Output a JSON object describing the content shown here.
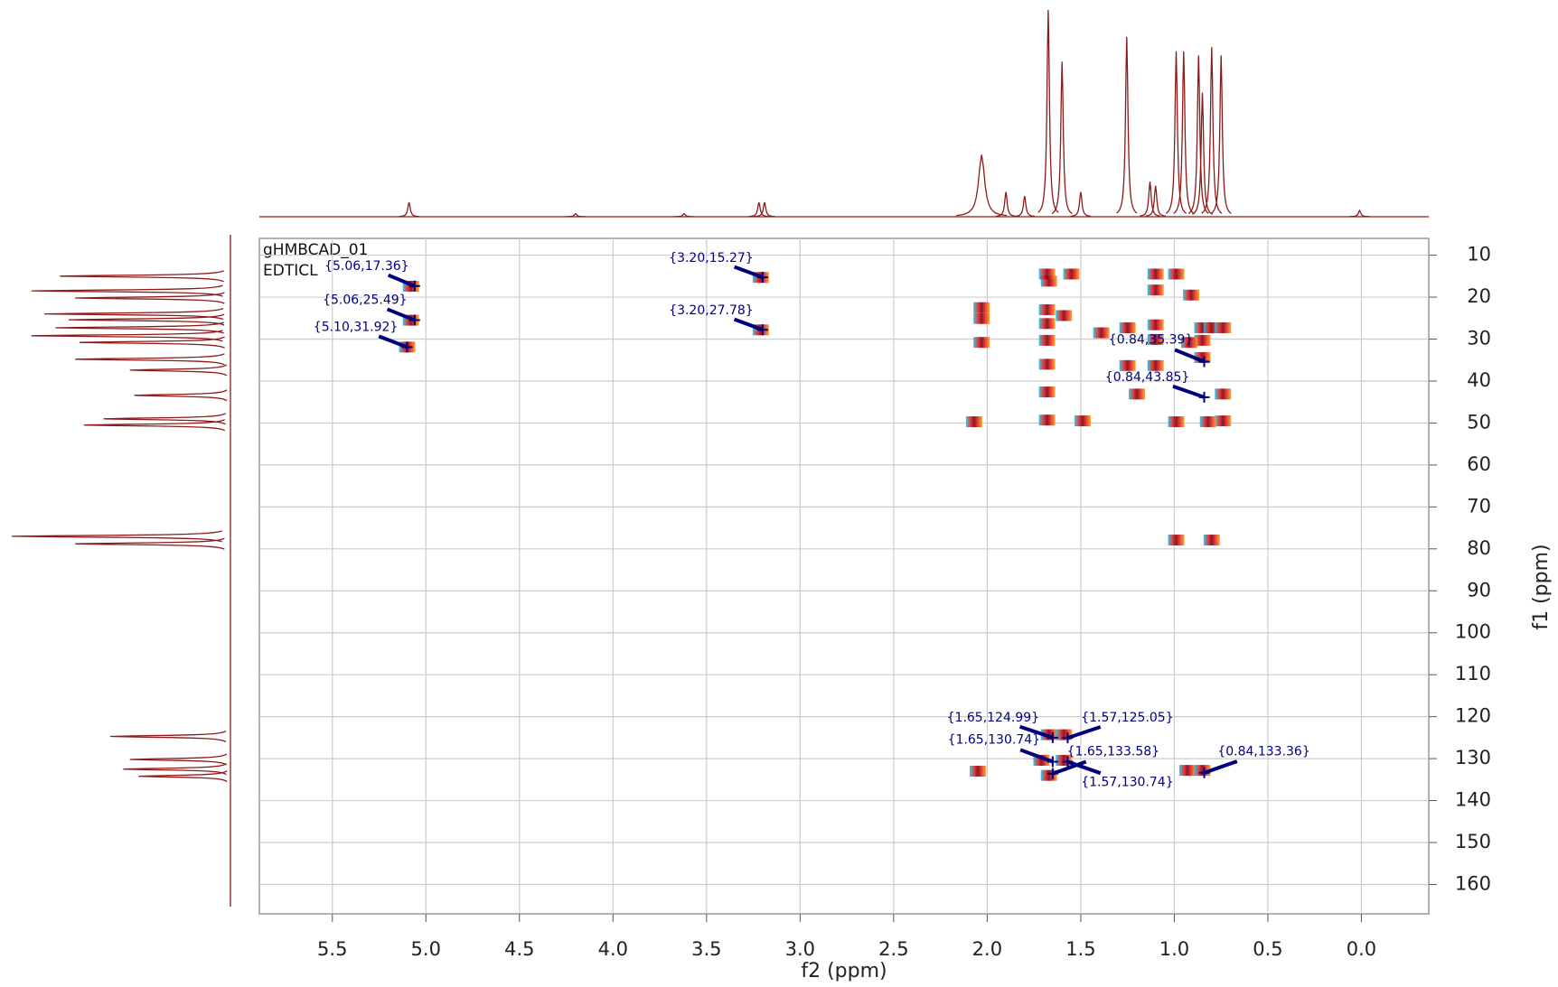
{
  "chart_data": {
    "type": "nmr2d",
    "experiment": "gHMBCAD_01",
    "sample": "EDTICL",
    "xlabel": "f2 (ppm)",
    "ylabel": "f1 (ppm)",
    "xlim": [
      5.89,
      -0.36
    ],
    "ylim": [
      6,
      167
    ],
    "xticks": [
      5.5,
      {
        "value": 5,
        "label": "5.0"
      },
      4.5,
      {
        "value": 4,
        "label": "4.0"
      },
      3.5,
      {
        "value": 3,
        "label": "3.0"
      },
      2.5,
      {
        "value": 2,
        "label": "2.0"
      },
      1.5,
      {
        "value": 1,
        "label": "1.0"
      },
      0.5,
      {
        "value": 0,
        "label": "0.0"
      }
    ],
    "yticks": [
      10,
      20,
      30,
      40,
      50,
      60,
      70,
      80,
      90,
      100,
      110,
      120,
      130,
      140,
      150,
      160
    ],
    "grid": true,
    "trace_color": "#8b1a1a",
    "label_color": "#00007f",
    "proton_projection": {
      "x": [
        5.09,
        4.2,
        3.62,
        3.22,
        3.19,
        2.03,
        1.9,
        1.8,
        1.674,
        1.6,
        1.5,
        1.254,
        1.13,
        1.1,
        0.99,
        0.95,
        0.87,
        0.85,
        0.8,
        0.75,
        0.01
      ],
      "values": [
        7,
        1.5,
        1.5,
        7,
        7,
        30,
        12,
        10,
        100,
        75,
        12,
        87,
        17,
        15,
        80,
        80,
        78,
        60,
        82,
        78,
        3
      ]
    },
    "carbon_projection": {
      "y": [
        15.0,
        18.5,
        20.2,
        24.0,
        25.4,
        27.3,
        29.2,
        30.8,
        34.8,
        37.4,
        43.4,
        49.0,
        50.5,
        77.0,
        78.8,
        124.7,
        130.2,
        132.5,
        134.2
      ],
      "values": [
        78,
        91,
        71,
        85,
        74,
        80,
        91,
        69,
        71,
        46,
        44,
        58,
        67,
        100,
        71,
        55,
        46,
        49,
        42
      ]
    },
    "cross_peaks": {
      "x": [
        1.68,
        1.68,
        1.68,
        1.68,
        1.68,
        1.68,
        1.67,
        1.59,
        1.67,
        1.59,
        1.71,
        1.67,
        1.59,
        2.05,
        2.03,
        2.03,
        2.03,
        2.07,
        1.39,
        1.25,
        1.25,
        1.1,
        1.1,
        1.1,
        1.1,
        1.1,
        1.2,
        1.49,
        0.99,
        0.99,
        0.99,
        0.85,
        0.85,
        0.85,
        0.8,
        0.74,
        0.74,
        0.74,
        0.82,
        0.8,
        0.93,
        0.85,
        0.91,
        1.55,
        1.68,
        0.92,
        5.08,
        5.08,
        5.1,
        3.21,
        3.21
      ],
      "y": [
        23.0,
        26.3,
        30.3,
        36.0,
        42.6,
        49.3,
        16.2,
        24.4,
        124.3,
        124.3,
        130.4,
        134.0,
        130.4,
        133.0,
        25.1,
        30.8,
        22.5,
        49.7,
        28.5,
        27.3,
        36.3,
        14.5,
        18.3,
        26.6,
        30.1,
        36.3,
        43.1,
        49.5,
        14.5,
        49.7,
        77.9,
        27.3,
        30.3,
        34.4,
        27.3,
        27.3,
        43.1,
        49.5,
        49.7,
        77.9,
        132.8,
        132.8,
        19.5,
        14.5,
        14.5,
        30.8,
        17.4,
        25.5,
        31.9,
        15.3,
        27.8
      ]
    },
    "peaks": {
      "x": [
        5.06,
        5.06,
        5.1,
        3.2,
        3.2,
        0.84,
        0.84,
        1.65,
        1.57,
        1.65,
        1.65,
        1.57,
        0.84
      ],
      "y": [
        17.36,
        25.49,
        31.92,
        15.27,
        27.78,
        35.39,
        43.85,
        124.99,
        125.05,
        130.74,
        133.58,
        130.74,
        133.36
      ],
      "labels": [
        "{5.06,17.36}",
        "{5.06,25.49}",
        "{5.10,31.92}",
        "{3.20,15.27}",
        "{3.20,27.78}",
        "{0.84,35.39}",
        "{0.84,43.85}",
        "{1.65,124.99}",
        "{1.57,125.05}",
        "{1.65,130.74}",
        "{1.65,133.58}",
        "{1.57,130.74}",
        "{0.84,133.36}"
      ]
    }
  }
}
